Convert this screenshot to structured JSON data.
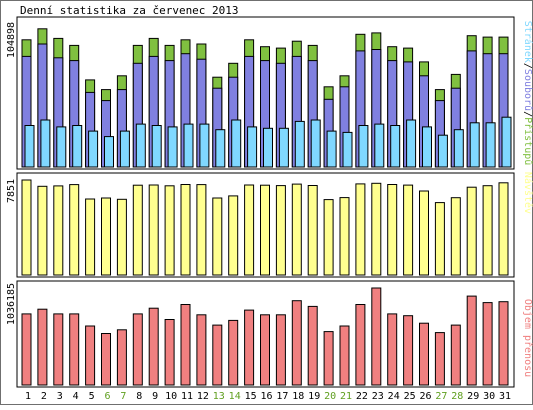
{
  "colors": {
    "background": "#ffffff",
    "outer_border": "#6f6f6f",
    "panel_border": "#000000",
    "bar_outline": "#000000",
    "hits": "#80c040",
    "files": "#8080e0",
    "pages": "#80d8ff",
    "visits": "#ffff90",
    "volume": "#f08080",
    "weekday_label": "#000000",
    "weekend_label": "#5f9f1f"
  },
  "chart_data": [
    {
      "type": "bar",
      "title": "Denní statistika za červenec 2013",
      "categories": [
        "1",
        "2",
        "3",
        "4",
        "5",
        "6",
        "7",
        "8",
        "9",
        "10",
        "11",
        "12",
        "13",
        "14",
        "15",
        "16",
        "17",
        "18",
        "19",
        "20",
        "21",
        "22",
        "23",
        "24",
        "25",
        "26",
        "27",
        "28",
        "29",
        "30",
        "31"
      ],
      "weekend_days": [
        "6",
        "7",
        "13",
        "14",
        "20",
        "21",
        "27",
        "28"
      ],
      "ymax_label": "104898",
      "ylim": [
        0,
        104898
      ],
      "side_label": {
        "pages": "Stránek",
        "files": "Souborů",
        "hits": "Přístupů",
        "sep": "/"
      },
      "series": [
        {
          "name": "Přístupů",
          "values": [
            92000,
            100000,
            93000,
            88000,
            63000,
            56000,
            66000,
            88000,
            93000,
            88000,
            92000,
            89000,
            65000,
            75000,
            92000,
            87000,
            86000,
            91000,
            88000,
            58000,
            66000,
            96000,
            97000,
            87000,
            86000,
            76000,
            56000,
            67000,
            95000,
            94000,
            94000
          ]
        },
        {
          "name": "Souborů",
          "values": [
            80000,
            89000,
            79000,
            77000,
            54000,
            48000,
            56000,
            75000,
            80000,
            77000,
            82000,
            78000,
            57000,
            65000,
            80000,
            77000,
            75000,
            80000,
            77000,
            49000,
            58000,
            84000,
            85000,
            77000,
            76000,
            66000,
            48000,
            57000,
            84000,
            82000,
            82000
          ]
        },
        {
          "name": "Stránek",
          "values": [
            30000,
            34000,
            29000,
            30000,
            26000,
            22000,
            26000,
            31000,
            30000,
            29000,
            31000,
            31000,
            27000,
            34000,
            29000,
            28000,
            28000,
            33000,
            34000,
            26000,
            25000,
            30000,
            31000,
            30000,
            34000,
            29000,
            23000,
            27000,
            32000,
            32000,
            36000
          ]
        }
      ]
    },
    {
      "type": "bar",
      "ymax_label": "7851",
      "ylim": [
        0,
        7851
      ],
      "side_label": "Návštěv",
      "series": [
        {
          "name": "Návštěv",
          "values": [
            7851,
            7330,
            7360,
            7470,
            6280,
            6360,
            6260,
            7420,
            7440,
            7370,
            7480,
            7470,
            6360,
            6540,
            7440,
            7420,
            7390,
            7510,
            7400,
            6230,
            6400,
            7530,
            7580,
            7480,
            7430,
            6940,
            5980,
            6390,
            7260,
            7380,
            7620
          ]
        }
      ]
    },
    {
      "type": "bar",
      "ymax_label": "1036185",
      "ylim": [
        0,
        1036185
      ],
      "side_label": "Objem přenosu",
      "series": [
        {
          "name": "Objem přenosu",
          "values": [
            760000,
            810000,
            760000,
            760000,
            630000,
            550000,
            590000,
            760000,
            820000,
            700000,
            860000,
            750000,
            640000,
            690000,
            800000,
            750000,
            750000,
            900000,
            840000,
            570000,
            630000,
            860000,
            1036185,
            760000,
            740000,
            660000,
            560000,
            640000,
            950000,
            880000,
            890000
          ]
        }
      ]
    }
  ]
}
